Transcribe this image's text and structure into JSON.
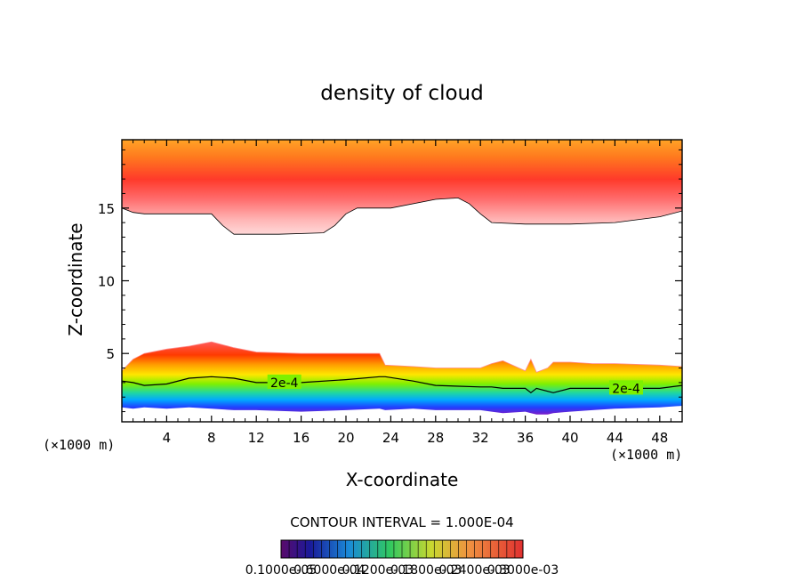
{
  "chart_data": {
    "type": "heatmap",
    "title": "density of cloud",
    "xlabel": "X-coordinate",
    "ylabel": "Z-coordinate",
    "x_unit": "(×1000 m)",
    "x_unit_right": "(×1000 m)",
    "xlim": [
      0,
      50
    ],
    "ylim": [
      0.3,
      19.7
    ],
    "x_ticks": [
      4,
      8,
      12,
      16,
      20,
      24,
      28,
      32,
      36,
      40,
      44,
      48
    ],
    "y_ticks": [
      5,
      10,
      15
    ],
    "contour_interval_label": "CONTOUR INTERVAL = 1.000E-04",
    "contour_labels": [
      {
        "text": "2e-4",
        "x": 14.5,
        "z": 3.0
      },
      {
        "text": "2e-4",
        "x": 45.0,
        "z": 2.6
      }
    ],
    "colorbar_labels": [
      "0.1000e-05",
      "0.6000e-04",
      "0.1200e-03",
      "0.1800e-03",
      "0.2400e-03",
      "0.3000e-03"
    ],
    "upper_cloud": {
      "x": [
        0,
        1,
        2,
        8,
        9,
        10,
        14,
        18,
        19,
        20,
        21,
        24,
        28,
        30,
        31,
        32,
        33,
        36,
        40,
        44,
        48,
        50
      ],
      "bottom": [
        15,
        14.7,
        14.6,
        14.6,
        13.8,
        13.2,
        13.2,
        13.3,
        13.8,
        14.6,
        15.0,
        15.0,
        15.6,
        15.7,
        15.3,
        14.6,
        14.0,
        13.9,
        13.9,
        14.0,
        14.4,
        14.8
      ],
      "top": 19.7
    },
    "lower_cloud": {
      "x": [
        0,
        1,
        2,
        4,
        6,
        8,
        10,
        12,
        16,
        20,
        23,
        23.5,
        26,
        28,
        32,
        33,
        34,
        36,
        36.5,
        37,
        38,
        38.5,
        40,
        42,
        44,
        48,
        50
      ],
      "top": [
        3.8,
        4.6,
        5.0,
        5.3,
        5.5,
        5.8,
        5.4,
        5.1,
        5.0,
        5.0,
        5.0,
        4.2,
        4.1,
        4.0,
        4.0,
        4.3,
        4.5,
        3.8,
        4.6,
        3.7,
        4.0,
        4.4,
        4.4,
        4.3,
        4.3,
        4.2,
        4.1
      ],
      "contour_2e4": [
        3.1,
        3.0,
        2.8,
        2.9,
        3.3,
        3.4,
        3.3,
        3.0,
        3.0,
        3.2,
        3.4,
        3.4,
        3.1,
        2.8,
        2.7,
        2.7,
        2.6,
        2.6,
        2.3,
        2.6,
        2.4,
        2.3,
        2.6,
        2.6,
        2.6,
        2.6,
        2.8
      ],
      "bottom": [
        1.3,
        1.2,
        1.3,
        1.2,
        1.3,
        1.2,
        1.1,
        1.1,
        1.0,
        1.1,
        1.2,
        1.1,
        1.2,
        1.1,
        1.1,
        1.0,
        0.9,
        1.0,
        0.9,
        0.8,
        0.8,
        0.9,
        1.0,
        1.1,
        1.2,
        1.3,
        1.4
      ]
    }
  }
}
